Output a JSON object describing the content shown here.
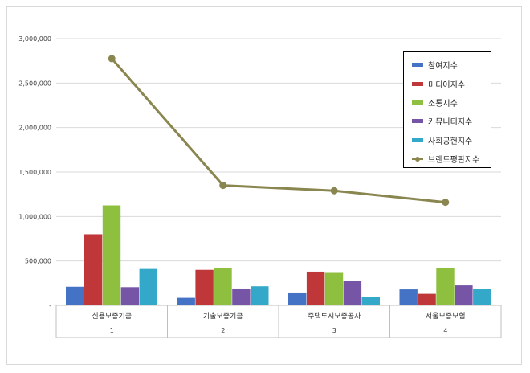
{
  "chart_data": {
    "type": "bar",
    "title": "",
    "xlabel": "",
    "ylabel": "",
    "ylim": [
      0,
      3000000
    ],
    "y_ticks": [
      0,
      500000,
      1000000,
      1500000,
      2000000,
      2500000,
      3000000
    ],
    "y_tick_labels": [
      "-",
      "500,000",
      "1,000,000",
      "1,500,000",
      "2,000,000",
      "2,500,000",
      "3,000,000"
    ],
    "categories": [
      "신용보증기금",
      "기술보증기금",
      "주택도시보증공사",
      "서울보증보험"
    ],
    "category_index_labels": [
      "1",
      "2",
      "3",
      "4"
    ],
    "grid": true,
    "legend_position": "top-right",
    "series": [
      {
        "name": "참여지수",
        "kind": "bar",
        "color": "#4472c4",
        "values": [
          210000,
          85000,
          145000,
          180000
        ]
      },
      {
        "name": "미디어지수",
        "kind": "bar",
        "color": "#c0373a",
        "values": [
          800000,
          400000,
          380000,
          130000
        ]
      },
      {
        "name": "소통지수",
        "kind": "bar",
        "color": "#8fbf3f",
        "values": [
          1125000,
          425000,
          375000,
          425000
        ]
      },
      {
        "name": "커뮤니티지수",
        "kind": "bar",
        "color": "#7654a6",
        "values": [
          205000,
          190000,
          280000,
          225000
        ]
      },
      {
        "name": "사회공헌지수",
        "kind": "bar",
        "color": "#33a8c8",
        "values": [
          410000,
          215000,
          95000,
          185000
        ]
      },
      {
        "name": "브랜드평판지수",
        "kind": "line",
        "color": "#8a8650",
        "values": [
          2775000,
          1350000,
          1290000,
          1160000
        ]
      }
    ]
  }
}
